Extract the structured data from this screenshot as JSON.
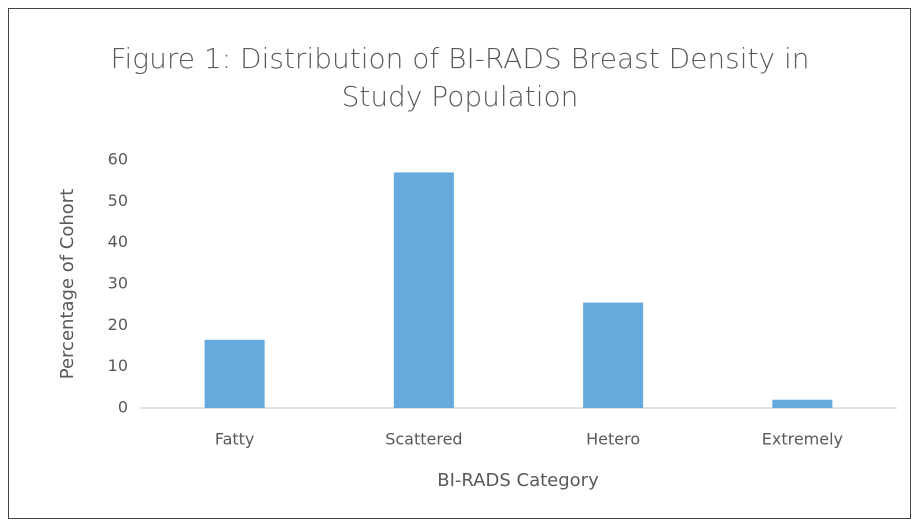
{
  "chart_data": {
    "type": "bar",
    "title": "Figure 1: Distribution of BI-RADS Breast Density in Study Population",
    "categories": [
      "Fatty",
      "Scattered",
      "Hetero",
      "Extremely"
    ],
    "values": [
      16.5,
      57,
      25.5,
      2
    ],
    "color": "#65a9dd",
    "x_label": "BI-RADS Category",
    "y_label": "Percentage of Cohort",
    "ylim": [
      0,
      60
    ],
    "yticks": [
      0,
      10,
      20,
      30,
      40,
      50,
      60
    ],
    "grid": false
  }
}
